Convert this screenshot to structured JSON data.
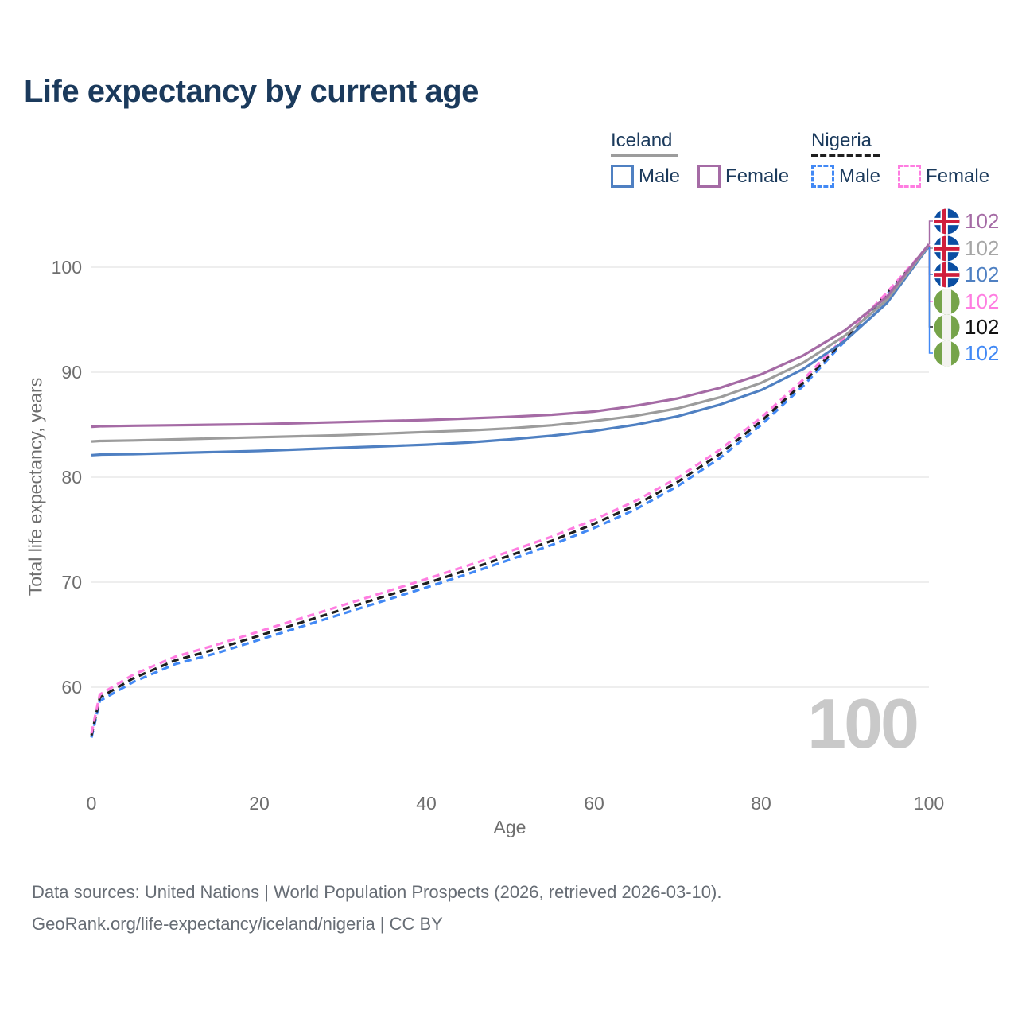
{
  "header": {
    "title": "Life expectancy by current age"
  },
  "legend": {
    "iceland": {
      "label": "Iceland",
      "male": "Male",
      "female": "Female"
    },
    "nigeria": {
      "label": "Nigeria",
      "male": "Male",
      "female": "Female"
    }
  },
  "chart_data": {
    "type": "line",
    "title": "Life expectancy by current age",
    "xlabel": "Age",
    "ylabel": "Total life expectancy, years",
    "xlim": [
      0,
      100
    ],
    "ylim": [
      54,
      104
    ],
    "x_ticks": [
      0,
      20,
      40,
      60,
      80,
      100
    ],
    "y_ticks": [
      60,
      70,
      80,
      90,
      100
    ],
    "grid": "horizontal",
    "gridline_color": "#e9e9e9",
    "ages": [
      0,
      1,
      5,
      10,
      15,
      20,
      25,
      30,
      35,
      40,
      45,
      50,
      55,
      60,
      65,
      70,
      75,
      80,
      85,
      90,
      95,
      100
    ],
    "series": [
      {
        "id": "iceland-female",
        "country": "Iceland",
        "sex": "Female",
        "dash": "solid",
        "color": "#a56ba5",
        "values": [
          84.8,
          84.85,
          84.9,
          84.95,
          85.0,
          85.05,
          85.15,
          85.25,
          85.35,
          85.45,
          85.6,
          85.75,
          85.95,
          86.25,
          86.8,
          87.5,
          88.5,
          89.8,
          91.6,
          94.0,
          97.2,
          102.2
        ]
      },
      {
        "id": "iceland-both",
        "country": "Iceland",
        "sex": "Both sexes",
        "dash": "solid",
        "color": "#9c9c9c",
        "values": [
          83.4,
          83.45,
          83.5,
          83.6,
          83.7,
          83.8,
          83.9,
          84.0,
          84.15,
          84.3,
          84.45,
          84.65,
          84.95,
          85.35,
          85.85,
          86.55,
          87.6,
          89.0,
          90.9,
          93.5,
          96.9,
          102.1
        ]
      },
      {
        "id": "iceland-male",
        "country": "Iceland",
        "sex": "Male",
        "dash": "solid",
        "color": "#4f80c2",
        "values": [
          82.1,
          82.15,
          82.2,
          82.3,
          82.4,
          82.5,
          82.65,
          82.8,
          82.95,
          83.1,
          83.3,
          83.6,
          83.95,
          84.4,
          85.0,
          85.8,
          86.9,
          88.3,
          90.3,
          93.0,
          96.6,
          102.0
        ]
      },
      {
        "id": "nigeria-female",
        "country": "Nigeria",
        "sex": "Female",
        "dash": "dashed",
        "color": "#ff7de1",
        "values": [
          55.6,
          59.3,
          61.2,
          62.9,
          64.05,
          65.3,
          66.55,
          67.8,
          69.05,
          70.3,
          71.6,
          72.95,
          74.35,
          75.95,
          77.75,
          79.95,
          82.6,
          85.7,
          89.3,
          93.4,
          97.6,
          102.1
        ]
      },
      {
        "id": "nigeria-both",
        "country": "Nigeria",
        "sex": "Both sexes",
        "dash": "dashed",
        "color": "#1f1f1f",
        "values": [
          55.4,
          59.0,
          60.85,
          62.55,
          63.65,
          64.9,
          66.15,
          67.4,
          68.65,
          69.9,
          71.2,
          72.55,
          73.95,
          75.55,
          77.35,
          79.55,
          82.2,
          85.35,
          89.0,
          93.2,
          97.5,
          102.0
        ]
      },
      {
        "id": "nigeria-male",
        "country": "Nigeria",
        "sex": "Male",
        "dash": "dashed",
        "color": "#4289f5",
        "values": [
          55.2,
          58.7,
          60.5,
          62.2,
          63.25,
          64.5,
          65.75,
          67.0,
          68.25,
          69.5,
          70.8,
          72.15,
          73.55,
          75.15,
          76.95,
          79.15,
          81.8,
          85.0,
          88.7,
          93.0,
          97.4,
          101.9
        ]
      }
    ],
    "end_labels": [
      {
        "flag": "iceland",
        "value": "102",
        "color": "#a56ba5"
      },
      {
        "flag": "iceland",
        "value": "102",
        "color": "#a6a6a6"
      },
      {
        "flag": "iceland",
        "value": "102",
        "color": "#4f80c2"
      },
      {
        "flag": "nigeria",
        "value": "102",
        "color": "#ff7de1"
      },
      {
        "flag": "nigeria",
        "value": "102",
        "color": "#111111"
      },
      {
        "flag": "nigeria",
        "value": "102",
        "color": "#4289f5"
      }
    ],
    "watermark": "100",
    "legend_position": "top-right"
  },
  "footer": {
    "line1": "Data sources: United Nations | World Population Prospects (2026, retrieved 2026-03-10).",
    "line2": "GeoRank.org/life-expectancy/iceland/nigeria | CC BY"
  }
}
